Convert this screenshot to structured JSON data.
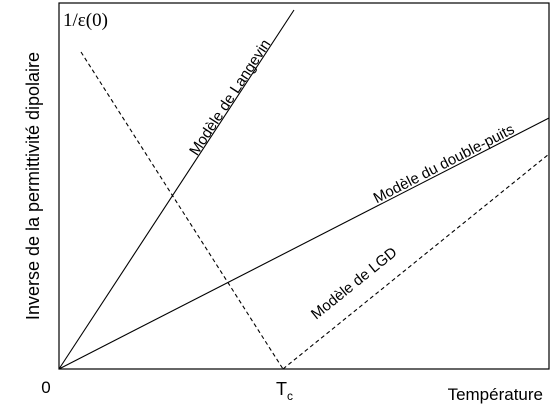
{
  "y_axis_label": "Inverse de la permittivité dipolaire",
  "y_axis_top_label": "1/ε(0)",
  "x_axis_label": "Température",
  "origin_label": "0",
  "tc_label": {
    "base": "T",
    "sub": "c"
  },
  "curves": {
    "langevin": "Modèle de Langevin",
    "double_puits": "Modèle du double-puits",
    "lgd": "Modèle de LGD"
  },
  "colors": {
    "line": "#000000",
    "background": "#ffffff"
  }
}
